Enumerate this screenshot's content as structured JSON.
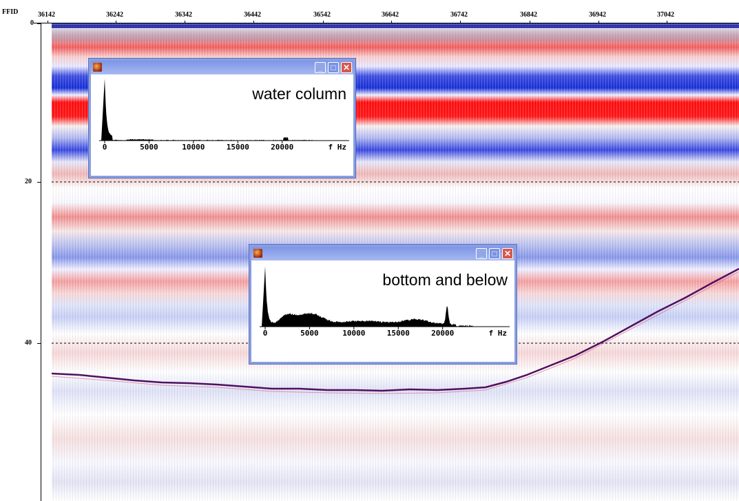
{
  "axis": {
    "top_label": "FFID",
    "top_ticks": [
      "36142",
      "36242",
      "36342",
      "36442",
      "36542",
      "36642",
      "36742",
      "36842",
      "36942",
      "37042"
    ],
    "left_ticks": [
      "0",
      "20",
      "40"
    ]
  },
  "windows": [
    {
      "title": "water column",
      "ticks": [
        "0",
        "5000",
        "10000",
        "15000",
        "20000"
      ],
      "axis_label": "f Hz",
      "buttons": [
        "_",
        "□",
        "✕"
      ]
    },
    {
      "title": "bottom and below",
      "ticks": [
        "0",
        "5000",
        "10000",
        "15000",
        "20000"
      ],
      "axis_label": "f Hz",
      "buttons": [
        "_",
        "□",
        "✕"
      ]
    }
  ],
  "colors": {
    "positive": "#ff0000",
    "negative": "#0000ff",
    "window_border": "#8a9fe0",
    "close_button": "#d9574a"
  }
}
